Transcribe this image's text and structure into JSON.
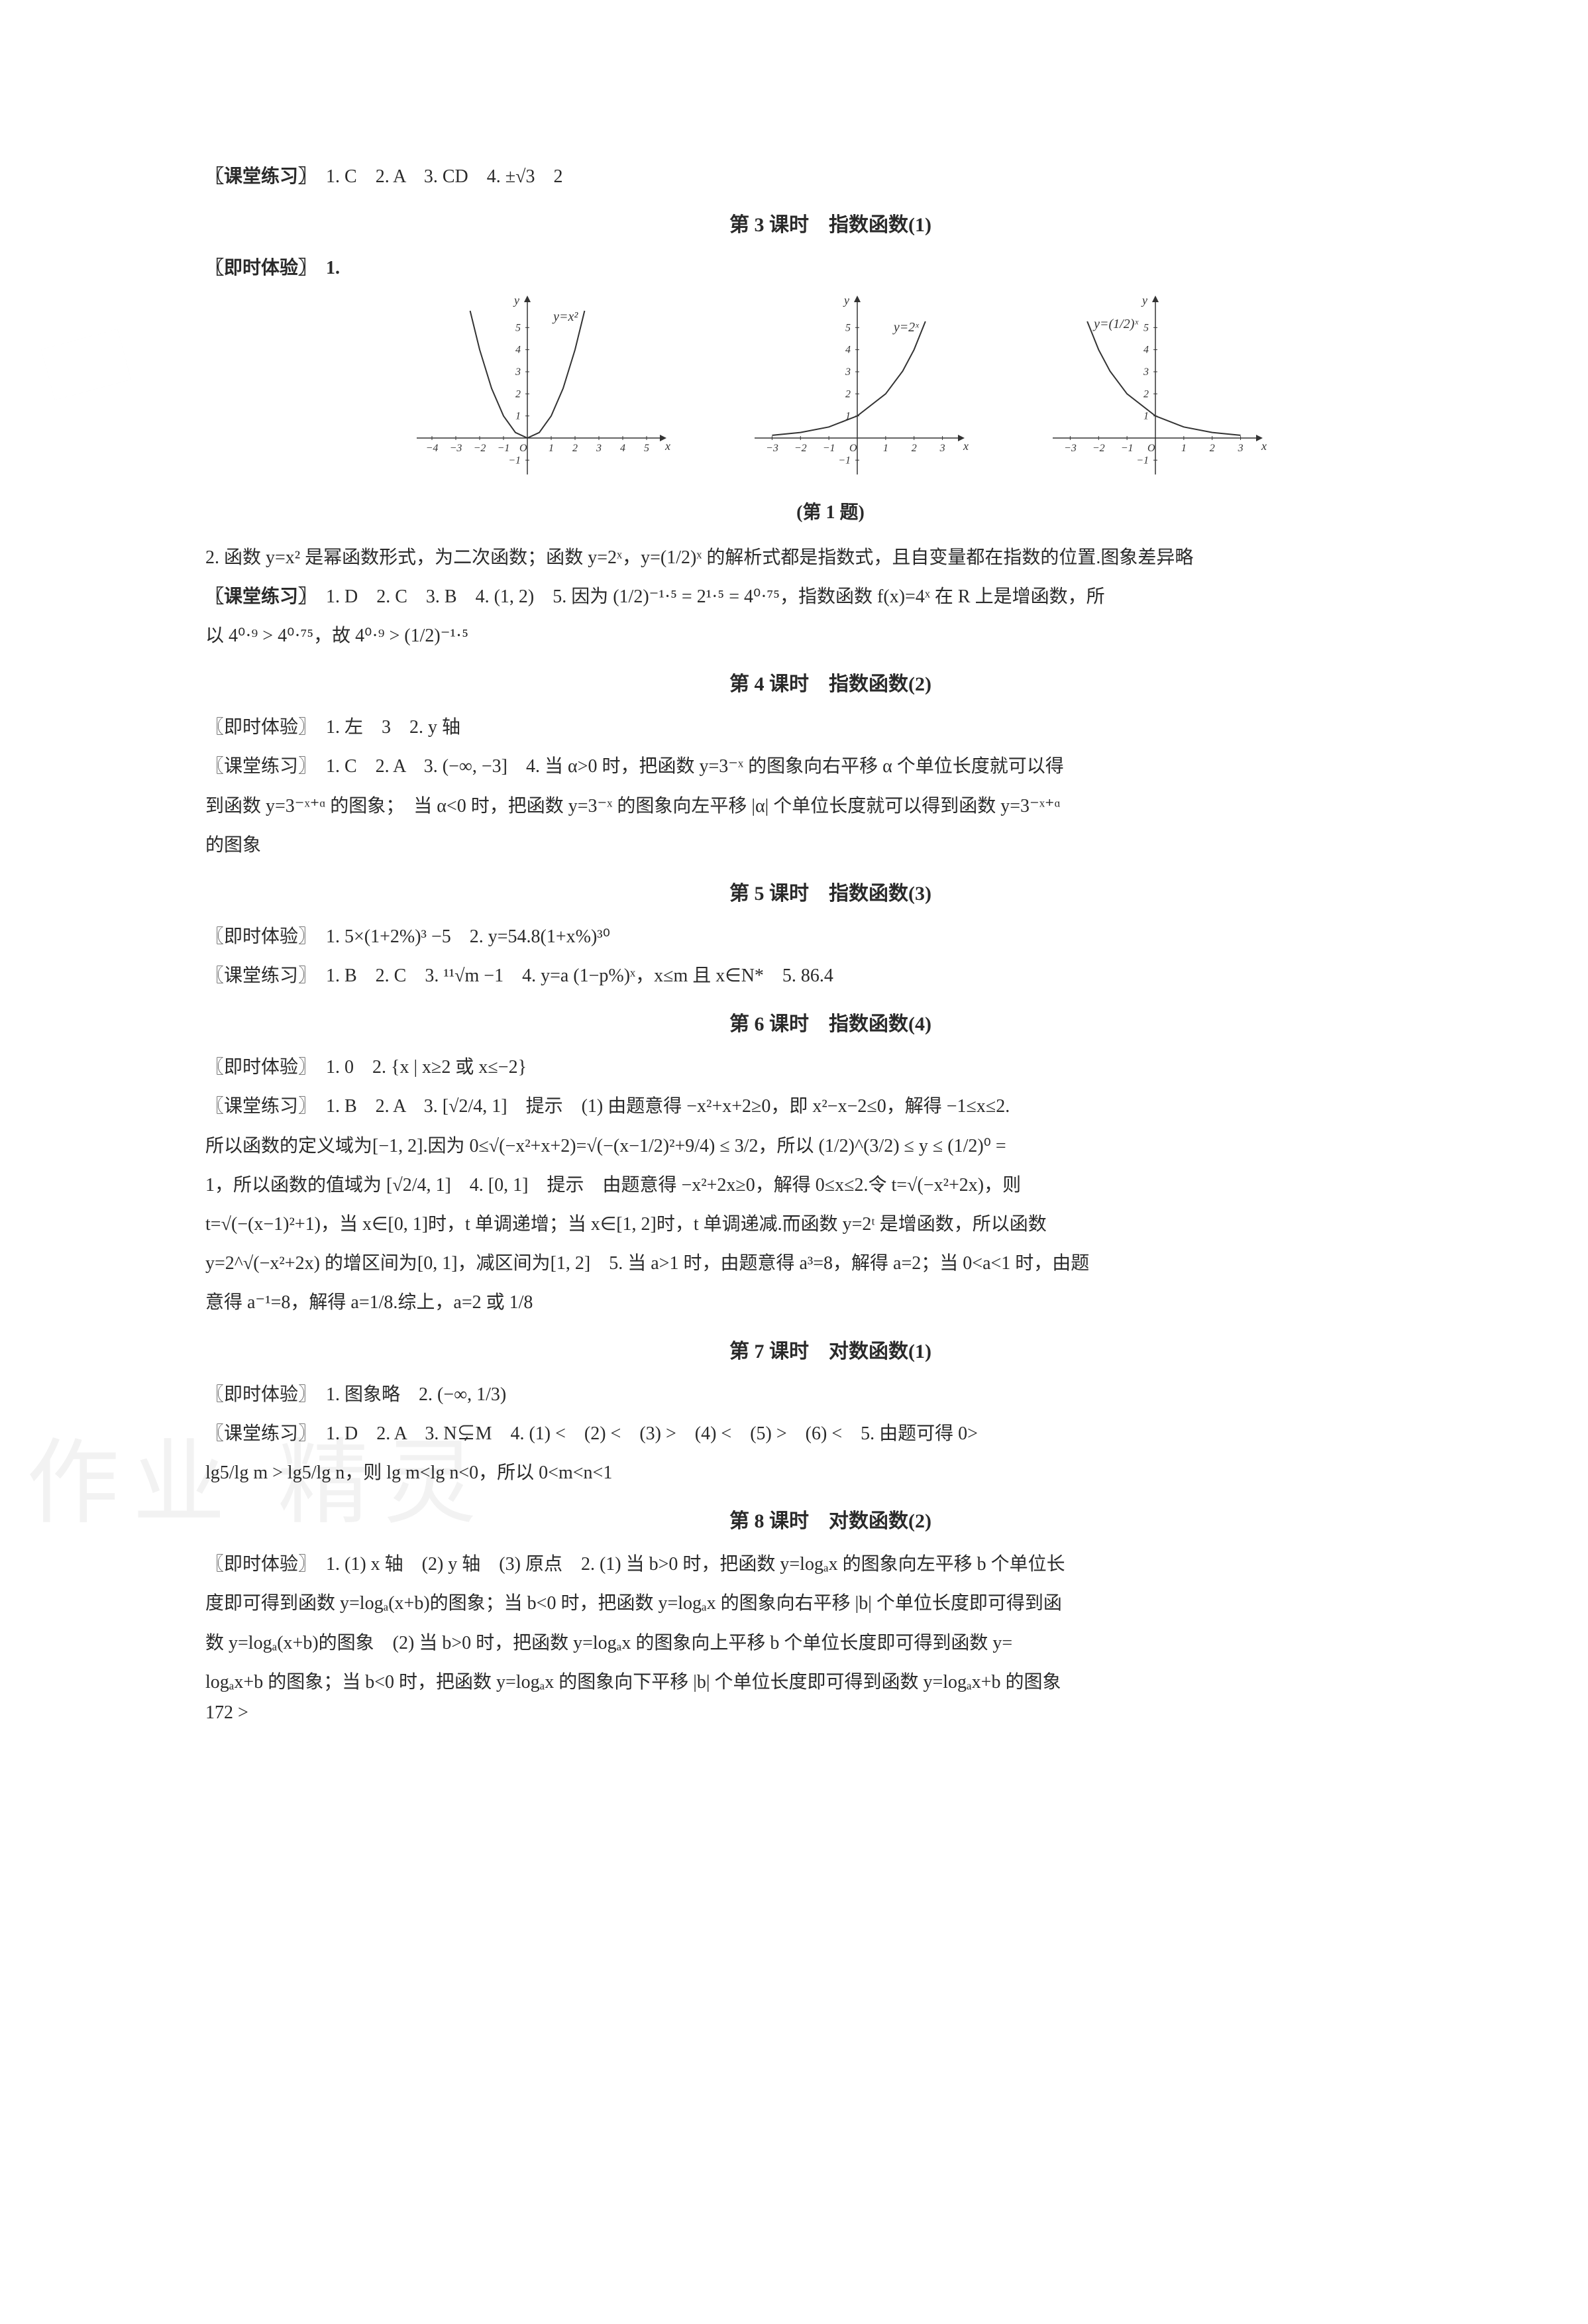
{
  "page_number": "172 >",
  "watermark_text": "作业 精灵",
  "colors": {
    "text": "#2a2a2a",
    "bg": "#ffffff",
    "axis": "#333333",
    "curve": "#333333"
  },
  "typography": {
    "body_fontsize_pt": 10.5,
    "title_fontsize_pt": 11,
    "font_family": "SimSun"
  },
  "top_practice": {
    "label": "〖课堂练习〗",
    "items": "　1. C　2. A　3. CD　4. ±√3　2"
  },
  "lesson3": {
    "title": "第 3 课时　指数函数(1)",
    "experience_label": "〖即时体验〗　1.",
    "figure_caption": "(第 1 题)",
    "charts": [
      {
        "type": "line",
        "label": "y=x²",
        "xlim": [
          -4.5,
          5.5
        ],
        "ylim": [
          -1.5,
          6
        ],
        "xticks": [
          -4,
          -3,
          -2,
          -1,
          1,
          2,
          3,
          4,
          5
        ],
        "yticks": [
          -1,
          1,
          2,
          3,
          4,
          5
        ],
        "origin_label": "O",
        "xlabel": "x",
        "ylabel": "y",
        "curve_color": "#333333",
        "axis_color": "#333333",
        "points": [
          [
            -2.4,
            5.76
          ],
          [
            -2,
            4
          ],
          [
            -1.5,
            2.25
          ],
          [
            -1,
            1
          ],
          [
            -0.5,
            0.25
          ],
          [
            0,
            0
          ],
          [
            0.5,
            0.25
          ],
          [
            1,
            1
          ],
          [
            1.5,
            2.25
          ],
          [
            2,
            4
          ],
          [
            2.4,
            5.76
          ]
        ]
      },
      {
        "type": "line",
        "label": "y=2ˣ",
        "xlim": [
          -3.5,
          3.5
        ],
        "ylim": [
          -1.5,
          6
        ],
        "xticks": [
          -3,
          -2,
          -1,
          1,
          2,
          3
        ],
        "yticks": [
          -1,
          1,
          2,
          3,
          4,
          5
        ],
        "origin_label": "O",
        "xlabel": "x",
        "ylabel": "y",
        "curve_color": "#333333",
        "axis_color": "#333333",
        "points": [
          [
            -3,
            0.125
          ],
          [
            -2,
            0.25
          ],
          [
            -1,
            0.5
          ],
          [
            0,
            1
          ],
          [
            1,
            2
          ],
          [
            1.6,
            3.03
          ],
          [
            2,
            4
          ],
          [
            2.4,
            5.28
          ]
        ]
      },
      {
        "type": "line",
        "label": "y=(1/2)ˣ",
        "xlim": [
          -3.5,
          3.5
        ],
        "ylim": [
          -1.5,
          6
        ],
        "xticks": [
          -3,
          -2,
          -1,
          1,
          2,
          3
        ],
        "yticks": [
          -1,
          1,
          2,
          3,
          4,
          5
        ],
        "origin_label": "O",
        "xlabel": "x",
        "ylabel": "y",
        "curve_color": "#333333",
        "axis_color": "#333333",
        "points": [
          [
            -2.4,
            5.28
          ],
          [
            -2,
            4
          ],
          [
            -1.6,
            3.03
          ],
          [
            -1,
            2
          ],
          [
            0,
            1
          ],
          [
            1,
            0.5
          ],
          [
            2,
            0.25
          ],
          [
            3,
            0.125
          ]
        ]
      }
    ],
    "q2_text": "2. 函数 y=x² 是幂函数形式，为二次函数；函数 y=2ˣ，y=(1/2)ˣ 的解析式都是指数式，且自变量都在指数的位置.图象差异略",
    "practice_label": "〖课堂练习〗",
    "practice_text_a": "　1. D　2. C　3. B　4. (1, 2)　5. 因为 (1/2)⁻¹·⁵ = 2¹·⁵ = 4⁰·⁷⁵，指数函数 f(x)=4ˣ 在 R 上是增函数，所",
    "practice_text_b": "以 4⁰·⁹ > 4⁰·⁷⁵，故 4⁰·⁹ > (1/2)⁻¹·⁵"
  },
  "lesson4": {
    "title": "第 4 课时　指数函数(2)",
    "experience": "〖即时体验〗　1. 左　3　2. y 轴",
    "practice_a": "〖课堂练习〗　1. C　2. A　3. (−∞, −3]　4. 当 α>0 时，把函数 y=3⁻ˣ 的图象向右平移 α 个单位长度就可以得",
    "practice_b": "到函数 y=3⁻ˣ⁺ᵅ 的图象；　当 α<0 时，把函数 y=3⁻ˣ 的图象向左平移 |α| 个单位长度就可以得到函数 y=3⁻ˣ⁺ᵅ",
    "practice_c": "的图象"
  },
  "lesson5": {
    "title": "第 5 课时　指数函数(3)",
    "experience": "〖即时体验〗　1. 5×(1+2%)³ −5　2. y=54.8(1+x%)³⁰",
    "practice": "〖课堂练习〗　1. B　2. C　3. ¹¹√m −1　4. y=a (1−p%)ˣ，x≤m 且 x∈N*　5. 86.4"
  },
  "lesson6": {
    "title": "第 6 课时　指数函数(4)",
    "experience": "〖即时体验〗　1. 0　2. {x | x≥2 或 x≤−2}",
    "practice_a": "〖课堂练习〗　1. B　2. A　3. [√2/4, 1]　提示　(1) 由题意得 −x²+x+2≥0，即 x²−x−2≤0，解得 −1≤x≤2.",
    "practice_b": "所以函数的定义域为[−1, 2].因为 0≤√(−x²+x+2)=√(−(x−1/2)²+9/4) ≤ 3/2，所以 (1/2)^(3/2) ≤ y ≤ (1/2)⁰ =",
    "practice_c": "1，所以函数的值域为 [√2/4, 1]　4. [0, 1]　提示　由题意得 −x²+2x≥0，解得 0≤x≤2.令 t=√(−x²+2x)，则",
    "practice_d": "t=√(−(x−1)²+1)，当 x∈[0, 1]时，t 单调递增；当 x∈[1, 2]时，t 单调递减.而函数 y=2ᵗ 是增函数，所以函数",
    "practice_e": "y=2^√(−x²+2x) 的增区间为[0, 1]，减区间为[1, 2]　5. 当 a>1 时，由题意得 a³=8，解得 a=2；当 0<a<1 时，由题",
    "practice_f": "意得 a⁻¹=8，解得 a=1/8.综上，a=2 或 1/8"
  },
  "lesson7": {
    "title": "第 7 课时　对数函数(1)",
    "experience": "〖即时体验〗　1. 图象略　2. (−∞, 1/3)",
    "practice_a": "〖课堂练习〗　1. D　2. A　3. N⊊M　4. (1) <　(2) <　(3) >　(4) <　(5) >　(6) <　5. 由题可得 0>",
    "practice_b": "lg5/lg m > lg5/lg n，则 lg m<lg n<0，所以 0<m<n<1"
  },
  "lesson8": {
    "title": "第 8 课时　对数函数(2)",
    "experience_a": "〖即时体验〗　1. (1) x 轴　(2) y 轴　(3) 原点　2. (1) 当 b>0 时，把函数 y=logₐx 的图象向左平移 b 个单位长",
    "experience_b": "度即可得到函数 y=logₐ(x+b)的图象；当 b<0 时，把函数 y=logₐx 的图象向右平移 |b| 个单位长度即可得到函",
    "experience_c": "数 y=logₐ(x+b)的图象　(2) 当 b>0 时，把函数 y=logₐx 的图象向上平移 b 个单位长度即可得到函数 y=",
    "experience_d": "logₐx+b 的图象；当 b<0 时，把函数 y=logₐx 的图象向下平移 |b| 个单位长度即可得到函数 y=logₐx+b 的图象"
  }
}
